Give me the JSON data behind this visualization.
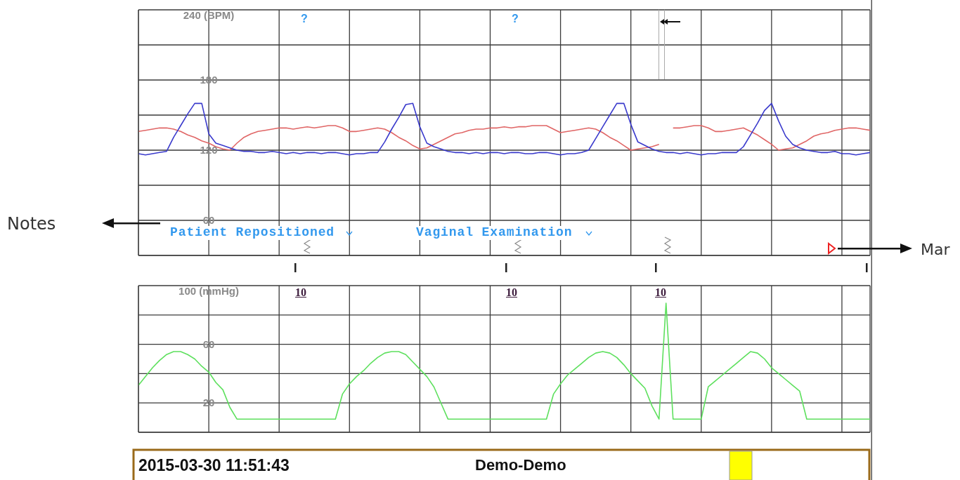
{
  "chart_data": [
    {
      "type": "line",
      "categories": [
        null,
        null,
        null,
        null,
        null,
        null,
        null,
        null,
        null,
        null,
        null,
        null,
        null,
        null,
        null,
        null,
        null,
        null,
        null,
        null,
        null,
        null,
        null,
        null,
        null,
        null,
        null,
        null,
        null,
        null,
        null,
        null,
        null,
        null,
        null,
        null,
        null,
        null,
        null,
        null,
        null,
        null,
        null,
        null,
        null,
        null,
        null,
        null,
        null,
        null,
        null,
        null,
        null,
        null,
        null,
        null,
        null,
        null,
        null,
        null,
        null,
        null,
        null,
        null,
        null,
        null,
        null,
        null,
        null,
        null,
        null,
        null,
        null,
        null,
        null,
        null,
        null,
        null,
        null,
        null,
        null,
        null,
        null,
        null,
        null,
        null,
        null,
        null,
        null,
        null,
        null,
        null,
        null,
        null,
        null,
        null,
        null,
        null,
        null,
        null,
        null,
        null,
        null,
        null,
        null
      ],
      "series": [
        {
          "color": "#e06666",
          "values": [
            136,
            137,
            138,
            139,
            139,
            138,
            136,
            133,
            131,
            128,
            126,
            123,
            121,
            120,
            126,
            131,
            134,
            136,
            137,
            138,
            139,
            139,
            138,
            139,
            140,
            139,
            140,
            141,
            141,
            139,
            136,
            136,
            137,
            138,
            139,
            138,
            135,
            131,
            128,
            124,
            121,
            122,
            125,
            128,
            131,
            134,
            135,
            137,
            138,
            138,
            139,
            139,
            140,
            139,
            140,
            140,
            141,
            141,
            141,
            138,
            135,
            136,
            137,
            138,
            139,
            138,
            135,
            131,
            128,
            124,
            120,
            121,
            122,
            123,
            125,
            null,
            139,
            139,
            140,
            141,
            141,
            139,
            136,
            136,
            137,
            138,
            139,
            136,
            133,
            129,
            125,
            120,
            121,
            122,
            125,
            128,
            132,
            134,
            135,
            137,
            138,
            139,
            139,
            138,
            137
          ]
        },
        {
          "color": "#3a3acc",
          "values": [
            117,
            116,
            117,
            118,
            119,
            131,
            141,
            151,
            160,
            160,
            134,
            126,
            124,
            122,
            120,
            119,
            119,
            118,
            118,
            119,
            118,
            117,
            118,
            117,
            118,
            118,
            117,
            118,
            118,
            117,
            116,
            117,
            117,
            118,
            118,
            127,
            138,
            148,
            159,
            160,
            140,
            126,
            123,
            121,
            119,
            118,
            118,
            117,
            118,
            117,
            118,
            118,
            117,
            118,
            118,
            117,
            117,
            118,
            118,
            117,
            116,
            117,
            117,
            118,
            120,
            130,
            140,
            150,
            160,
            160,
            142,
            127,
            124,
            121,
            119,
            118,
            118,
            117,
            118,
            117,
            116,
            117,
            117,
            118,
            118,
            118,
            123,
            133,
            143,
            154,
            160,
            145,
            132,
            125,
            122,
            120,
            119,
            118,
            118,
            119,
            117,
            117,
            116,
            117,
            118
          ]
        }
      ],
      "ylim": [
        30,
        240
      ],
      "yticks": [
        {
          "value": 30,
          "label": null
        },
        60,
        {
          "value": 90,
          "label": null
        },
        120,
        {
          "value": 150,
          "label": null
        },
        180,
        {
          "value": 210,
          "label": null
        },
        {
          "value": 240,
          "label": "240 (BPM)"
        }
      ],
      "grid": true,
      "tick_labels": "y",
      "line_style": "solid",
      "annotations": [
        "?",
        "?",
        "Patient Repositioned",
        "Vaginal Examination",
        "Notes",
        "Mar"
      ]
    },
    {
      "type": "line",
      "categories": [
        null,
        null,
        null,
        null,
        null,
        null,
        null,
        null,
        null,
        null,
        null,
        null,
        null,
        null,
        null,
        null,
        null,
        null,
        null,
        null,
        null,
        null,
        null,
        null,
        null,
        null,
        null,
        null,
        null,
        null,
        null,
        null,
        null,
        null,
        null,
        null,
        null,
        null,
        null,
        null,
        null,
        null,
        null,
        null,
        null,
        null,
        null,
        null,
        null,
        null,
        null,
        null,
        null,
        null,
        null,
        null,
        null,
        null,
        null,
        null,
        null,
        null,
        null,
        null,
        null,
        null,
        null,
        null,
        null,
        null,
        null,
        null,
        null,
        null,
        null,
        null,
        null,
        null,
        null,
        null,
        null,
        null,
        null,
        null,
        null,
        null,
        null,
        null,
        null,
        null,
        null,
        null,
        null,
        null,
        null,
        null,
        null,
        null,
        null,
        null,
        null,
        null,
        null,
        null,
        null
      ],
      "series": [
        {
          "color": "#5ee05e",
          "values": [
            32,
            38,
            44,
            49,
            53,
            55,
            55,
            53,
            50,
            45,
            41,
            34,
            29,
            17,
            9,
            9,
            9,
            9,
            9,
            9,
            9,
            9,
            9,
            9,
            9,
            9,
            9,
            9,
            9,
            26,
            33,
            38,
            42,
            47,
            51,
            54,
            55,
            55,
            53,
            48,
            43,
            38,
            31,
            20,
            9,
            9,
            9,
            9,
            9,
            9,
            9,
            9,
            9,
            9,
            9,
            9,
            9,
            9,
            9,
            26,
            33,
            39,
            43,
            47,
            51,
            54,
            55,
            54,
            51,
            46,
            40,
            35,
            30,
            18,
            9,
            88,
            9,
            9,
            9,
            9,
            9,
            31,
            35,
            39,
            43,
            47,
            51,
            55,
            54,
            50,
            44,
            40,
            36,
            32,
            28,
            9,
            9,
            9,
            9,
            9,
            9,
            9,
            9,
            9,
            9
          ]
        }
      ],
      "ylim": [
        0,
        100
      ],
      "yticks": [
        {
          "value": 0,
          "label": null
        },
        20,
        {
          "value": 40,
          "label": null
        },
        60,
        {
          "value": 80,
          "label": null
        },
        {
          "value": 100,
          "label": "100 (mmHg)"
        }
      ],
      "grid": true,
      "tick_labels": "y",
      "line_style": "solid",
      "annotations": [
        "10",
        "10",
        "10",
        "2015-03-30 11:51:43",
        "Demo-Demo"
      ]
    }
  ]
}
